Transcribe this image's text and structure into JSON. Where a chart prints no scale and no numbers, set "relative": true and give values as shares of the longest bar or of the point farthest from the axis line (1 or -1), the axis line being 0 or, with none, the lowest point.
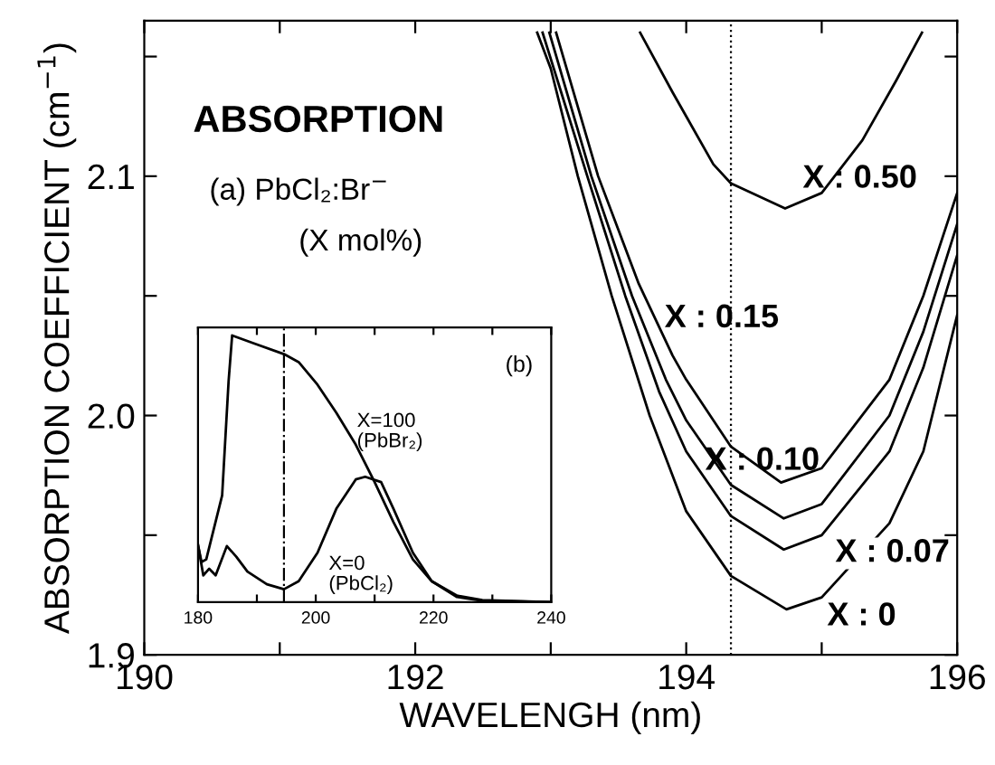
{
  "chart_data": [
    {
      "type": "line",
      "xlabel": "WAVELENGH (nm)",
      "ylabel": "ABSORPTION COEFFICIENT (cm$^{−1}$)",
      "annotations": [
        "ABSORPTION",
        "(a) PbCl₂:Br$^{−}$",
        "(X mol%)"
      ],
      "xlim": [
        190,
        196
      ],
      "xticks": [
        190,
        {
          "value": 191,
          "label": null
        },
        192,
        {
          "value": 193,
          "label": null
        },
        194,
        {
          "value": 195,
          "label": null
        },
        196
      ],
      "ylim": [
        1.9,
        2.165
      ],
      "yticks": [
        1.9,
        {
          "value": 1.95,
          "label": null
        },
        {
          "value": 2,
          "label": "2.0"
        },
        {
          "value": 2.05,
          "label": null
        },
        2.1,
        {
          "value": 2.15,
          "label": null
        }
      ],
      "grid": false,
      "legend": "right",
      "marker": "none",
      "line_style": "solid",
      "ref_lines": [
        {
          "axis": "x",
          "value": 194.33,
          "color": "#000000",
          "line_style": "dotted"
        }
      ],
      "series": [
        {
          "name": "X : 0",
          "color": "#000000",
          "x": [
            192.9,
            193.0,
            193.2,
            193.45,
            193.73,
            194.0,
            194.33,
            194.74,
            195.0,
            195.5,
            195.75,
            196.0
          ],
          "values": [
            2.16,
            2.145,
            2.1,
            2.05,
            2.0,
            1.96,
            1.933,
            1.919,
            1.924,
            1.955,
            1.985,
            2.042
          ]
        },
        {
          "name": "X : 0.07",
          "color": "#000000",
          "x": [
            192.94,
            193.05,
            193.27,
            193.55,
            193.8,
            194.0,
            194.33,
            194.72,
            195.0,
            195.5,
            195.75,
            196.0
          ],
          "values": [
            2.16,
            2.14,
            2.1,
            2.05,
            2.01,
            1.985,
            1.958,
            1.944,
            1.95,
            1.985,
            2.02,
            2.067
          ]
        },
        {
          "name": "X : 0.10",
          "color": "#000000",
          "x": [
            192.99,
            193.3,
            193.6,
            193.85,
            194.0,
            194.33,
            194.72,
            195.0,
            195.5,
            195.75,
            196.0
          ],
          "values": [
            2.16,
            2.1,
            2.05,
            2.015,
            1.998,
            1.971,
            1.957,
            1.963,
            2.0,
            2.035,
            2.08
          ]
        },
        {
          "name": "X : 0.15",
          "color": "#000000",
          "x": [
            193.04,
            193.35,
            193.65,
            193.9,
            194.0,
            194.33,
            194.7,
            195.0,
            195.5,
            195.75,
            196.0
          ],
          "values": [
            2.16,
            2.1,
            2.055,
            2.025,
            2.015,
            1.987,
            1.972,
            1.978,
            2.015,
            2.05,
            2.093
          ]
        },
        {
          "name": "X : 0.50",
          "color": "#000000",
          "x": [
            193.66,
            193.9,
            194.2,
            194.33,
            194.73,
            195.0,
            195.3,
            195.55,
            195.74
          ],
          "values": [
            2.16,
            2.135,
            2.105,
            2.097,
            2.0865,
            2.093,
            2.115,
            2.14,
            2.16
          ]
        }
      ]
    },
    {
      "type": "line",
      "relative": true,
      "tick_labels": "x",
      "annotations": [
        "(b)"
      ],
      "xlim": [
        180,
        240
      ],
      "xticks": [
        180,
        {
          "value": 190,
          "label": null
        },
        200,
        {
          "value": 210,
          "label": null
        },
        220,
        {
          "value": 230,
          "label": null
        },
        240
      ],
      "grid": false,
      "legend": "right",
      "marker": "none",
      "line_style": "solid",
      "ref_lines": [
        {
          "axis": "x",
          "value": 194.6,
          "color": "#000000",
          "line_style": "dashdot"
        }
      ],
      "series": [
        {
          "name": "X=100\n(PbBr₂)",
          "color": "#000000",
          "x": [
            180,
            180.6,
            181.4,
            184.1,
            185.2,
            185.8,
            189.5,
            194.6,
            197.1,
            200.3,
            203.5,
            206.8,
            210.0,
            213.2,
            216.5,
            219.7,
            224.0,
            228.3,
            240
          ],
          "values": [
            0.214,
            0.15,
            0.16,
            0.4,
            0.83,
            1.0,
            0.97,
            0.93,
            0.9,
            0.815,
            0.71,
            0.59,
            0.45,
            0.3,
            0.16,
            0.078,
            0.024,
            0.007,
            0
          ]
        },
        {
          "name": "X=0\n(PbCl₂)",
          "color": "#000000",
          "x": [
            180,
            180.9,
            181.9,
            183.0,
            184.9,
            186.5,
            188.4,
            191.7,
            194.6,
            197.1,
            200.3,
            203.5,
            206.8,
            208.4,
            211.1,
            213.2,
            216.5,
            219.7,
            224.0,
            228.3,
            240
          ],
          "values": [
            0.214,
            0.1,
            0.125,
            0.1,
            0.21,
            0.17,
            0.114,
            0.067,
            0.048,
            0.078,
            0.185,
            0.35,
            0.46,
            0.47,
            0.45,
            0.35,
            0.185,
            0.078,
            0.019,
            0.005,
            0
          ]
        }
      ]
    }
  ]
}
